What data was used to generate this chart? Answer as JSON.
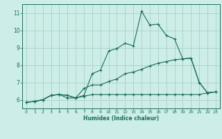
{
  "xlabel": "Humidex (Indice chaleur)",
  "ylabel": "",
  "bg_color": "#cdeee8",
  "grid_color": "#aed4cc",
  "line_color": "#1a6b5a",
  "xlim": [
    -0.5,
    23.5
  ],
  "ylim": [
    5.5,
    11.5
  ],
  "xticks": [
    0,
    1,
    2,
    3,
    4,
    5,
    6,
    7,
    8,
    9,
    10,
    11,
    12,
    13,
    14,
    15,
    16,
    17,
    18,
    19,
    20,
    21,
    22,
    23
  ],
  "yticks": [
    6,
    7,
    8,
    9,
    10,
    11
  ],
  "line1_x": [
    0,
    1,
    2,
    3,
    4,
    5,
    6,
    7,
    8,
    9,
    10,
    11,
    12,
    13,
    14,
    15,
    16,
    17,
    18,
    19,
    20,
    21,
    22,
    23
  ],
  "line1_y": [
    5.85,
    5.9,
    6.0,
    6.25,
    6.3,
    6.25,
    6.1,
    6.25,
    7.5,
    7.7,
    8.8,
    8.95,
    9.25,
    9.1,
    11.1,
    10.3,
    10.35,
    9.7,
    9.5,
    8.35,
    8.4,
    7.0,
    6.4,
    6.45
  ],
  "line2_x": [
    0,
    1,
    2,
    3,
    4,
    5,
    6,
    7,
    8,
    9,
    10,
    11,
    12,
    13,
    14,
    15,
    16,
    17,
    18,
    19,
    20,
    21,
    22,
    23
  ],
  "line2_y": [
    5.85,
    5.9,
    6.0,
    6.25,
    6.3,
    6.25,
    6.1,
    6.65,
    6.85,
    6.85,
    7.05,
    7.2,
    7.5,
    7.6,
    7.75,
    7.95,
    8.1,
    8.2,
    8.3,
    8.35,
    8.4,
    7.0,
    6.4,
    6.45
  ],
  "line3_x": [
    0,
    1,
    2,
    3,
    4,
    5,
    6,
    7,
    8,
    9,
    10,
    11,
    12,
    13,
    14,
    15,
    16,
    17,
    18,
    19,
    20,
    21,
    22,
    23
  ],
  "line3_y": [
    5.85,
    5.9,
    6.0,
    6.25,
    6.3,
    6.1,
    6.1,
    6.2,
    6.3,
    6.3,
    6.3,
    6.3,
    6.3,
    6.3,
    6.3,
    6.3,
    6.3,
    6.3,
    6.3,
    6.3,
    6.3,
    6.3,
    6.4,
    6.45
  ],
  "xticklabels": [
    "0",
    "1",
    "2",
    "3",
    "4",
    "5",
    "6",
    "7",
    "8",
    "9",
    "10",
    "11",
    "12",
    "13",
    "14",
    "15",
    "16",
    "17",
    "18",
    "19",
    "20",
    "21",
    "22",
    "23"
  ]
}
